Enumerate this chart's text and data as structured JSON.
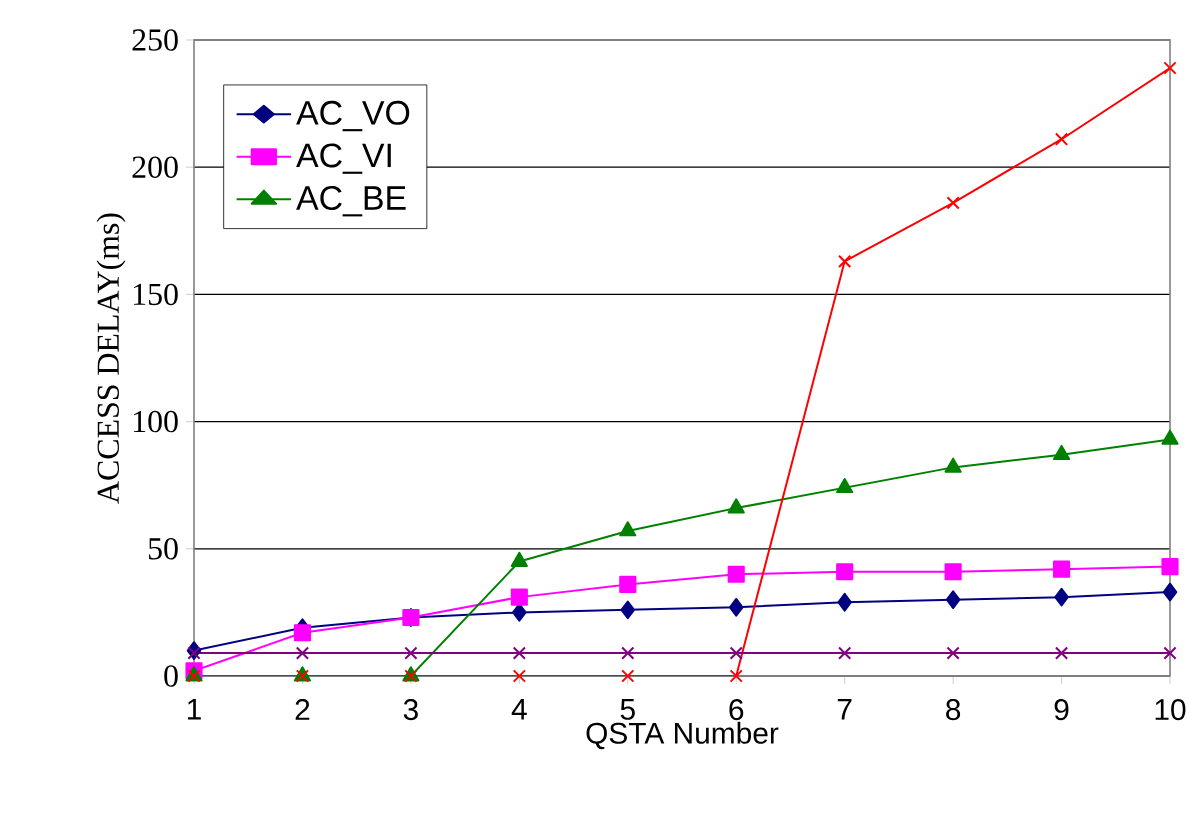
{
  "chart_data": {
    "type": "line",
    "xlabel": "QSTA Number",
    "ylabel": "ACCESS DELAY(ms)",
    "x": [
      1,
      2,
      3,
      4,
      5,
      6,
      7,
      8,
      9,
      10
    ],
    "xlim": [
      1,
      10
    ],
    "xticks": [
      1,
      2,
      3,
      4,
      5,
      6,
      7,
      8,
      9,
      10
    ],
    "ylim": [
      0,
      250
    ],
    "yticks": [
      0,
      50,
      100,
      150,
      200,
      250
    ],
    "grid": "y",
    "legend": "top left",
    "line_style": "solid",
    "series": [
      {
        "name": "AC_VO",
        "color": "#000080",
        "marker": "diamond",
        "values": [
          10,
          19,
          23,
          25,
          26,
          27,
          29,
          30,
          31,
          33
        ]
      },
      {
        "name": "AC_VI",
        "color": "#ff00ff",
        "marker": "square",
        "values": [
          2,
          17,
          23,
          31,
          36,
          40,
          41,
          41,
          42,
          43
        ]
      },
      {
        "name": "AC_BE",
        "color": "#008000",
        "marker": "triangle",
        "values": [
          0,
          0,
          0,
          45,
          57,
          66,
          74,
          82,
          87,
          93
        ]
      },
      {
        "color": "#ff0000",
        "marker": "cross",
        "values": [
          0,
          0,
          0,
          0,
          0,
          0,
          163,
          186,
          211,
          239
        ]
      },
      {
        "color": "#800080",
        "marker": "cross",
        "values": [
          9,
          9,
          9,
          9,
          9,
          9,
          9,
          9,
          9,
          9
        ]
      }
    ]
  }
}
